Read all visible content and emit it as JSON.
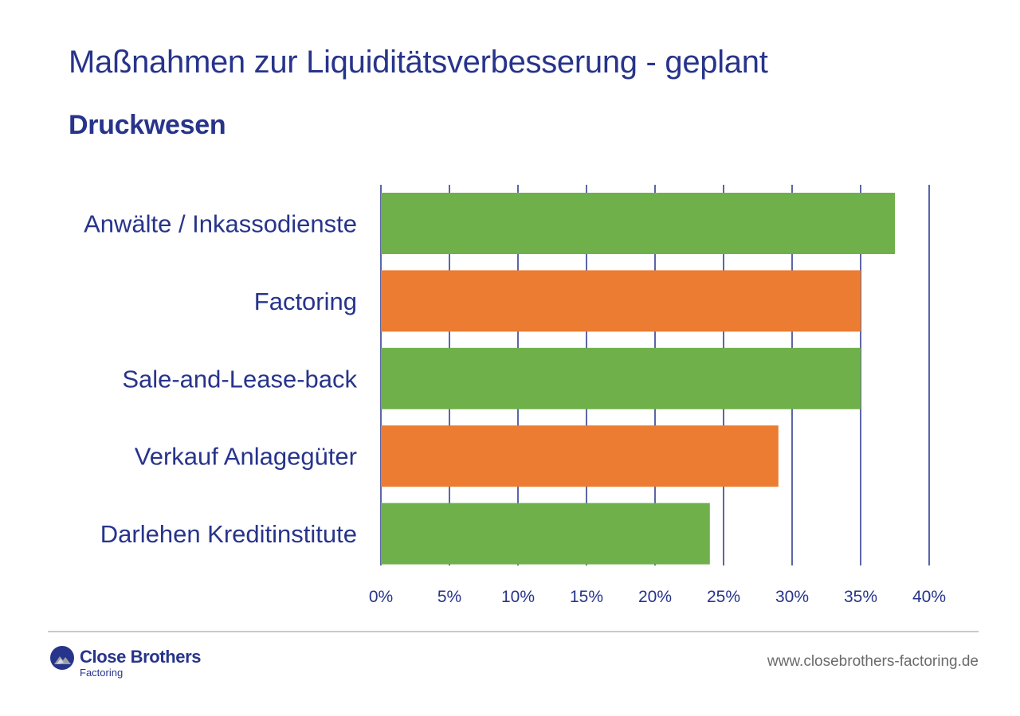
{
  "page": {
    "title": "Maßnahmen zur Liquiditätsverbesserung - geplant",
    "subtitle": "Druckwesen"
  },
  "footer": {
    "logo_name": "Close Brothers",
    "logo_sub": "Factoring",
    "website": "www.closebrothers-factoring.de",
    "logo_icon": "close-brothers-logo-icon"
  },
  "colors": {
    "text": "#27348b",
    "grid": "#27348b",
    "green": "#6fb04a",
    "orange": "#ec7c31"
  },
  "chart_data": {
    "type": "bar",
    "orientation": "horizontal",
    "categories": [
      "Anwälte / Inkassodienste",
      "Factoring",
      "Sale-and-Lease-back",
      "Verkauf Anlagegüter",
      "Darlehen Kreditinstitute"
    ],
    "values": [
      37.5,
      35,
      35,
      29,
      24
    ],
    "bar_colors": [
      "#6fb04a",
      "#ec7c31",
      "#6fb04a",
      "#ec7c31",
      "#6fb04a"
    ],
    "xlim": [
      0,
      40
    ],
    "x_ticks": [
      0,
      5,
      10,
      15,
      20,
      25,
      30,
      35,
      40
    ],
    "x_tick_labels": [
      "0%",
      "5%",
      "10%",
      "15%",
      "20%",
      "25%",
      "30%",
      "35%",
      "40%"
    ],
    "grid": true,
    "legend": "none"
  }
}
